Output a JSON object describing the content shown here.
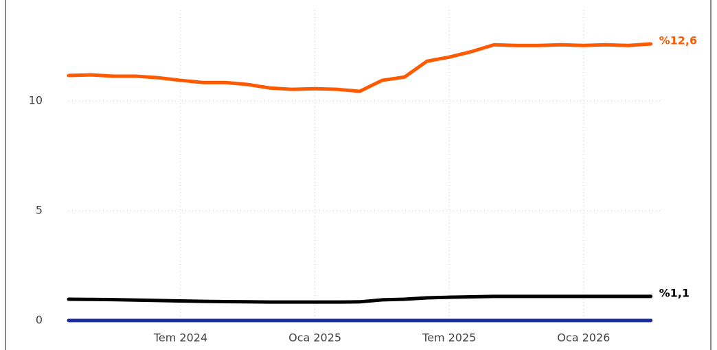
{
  "chart_data": {
    "type": "line",
    "categories": [
      null,
      null,
      null,
      null,
      null,
      "Tem 2024",
      null,
      null,
      null,
      null,
      null,
      "Oca 2025",
      null,
      null,
      null,
      null,
      null,
      "Tem 2025",
      null,
      null,
      null,
      null,
      null,
      "Oca 2026",
      null,
      null,
      null
    ],
    "series": [
      {
        "color": "#ff5a00",
        "values": [
          11.16,
          11.19,
          11.13,
          11.13,
          11.06,
          10.94,
          10.84,
          10.84,
          10.75,
          10.59,
          10.53,
          10.56,
          10.53,
          10.44,
          10.94,
          11.09,
          11.81,
          12.0,
          12.25,
          12.56,
          12.53,
          12.53,
          12.56,
          12.53,
          12.56,
          12.53,
          12.6
        ],
        "value_labels": [
          null,
          null,
          null,
          null,
          null,
          null,
          null,
          null,
          null,
          null,
          null,
          null,
          null,
          null,
          null,
          null,
          null,
          null,
          null,
          null,
          null,
          null,
          null,
          null,
          null,
          null,
          "%12,6"
        ]
      },
      {
        "color": "#000000",
        "values": [
          0.97,
          0.96,
          0.95,
          0.93,
          0.91,
          0.89,
          0.87,
          0.86,
          0.85,
          0.84,
          0.84,
          0.84,
          0.84,
          0.85,
          0.94,
          0.97,
          1.03,
          1.06,
          1.08,
          1.1,
          1.1,
          1.1,
          1.1,
          1.1,
          1.1,
          1.1,
          1.1
        ],
        "value_labels": [
          null,
          null,
          null,
          null,
          null,
          null,
          null,
          null,
          null,
          null,
          null,
          null,
          null,
          null,
          null,
          null,
          null,
          null,
          null,
          null,
          null,
          null,
          null,
          null,
          null,
          null,
          "%1,1"
        ]
      },
      {
        "color": "#1a2a9c",
        "values": [
          0,
          0,
          0,
          0,
          0,
          0,
          0,
          0,
          0,
          0,
          0,
          0,
          0,
          0,
          0,
          0,
          0,
          0,
          0,
          0,
          0,
          0,
          0,
          0,
          0,
          0,
          0
        ]
      }
    ],
    "ylim": [
      0,
      14.6
    ],
    "yticks": [
      0,
      5,
      10
    ],
    "grid": true
  }
}
